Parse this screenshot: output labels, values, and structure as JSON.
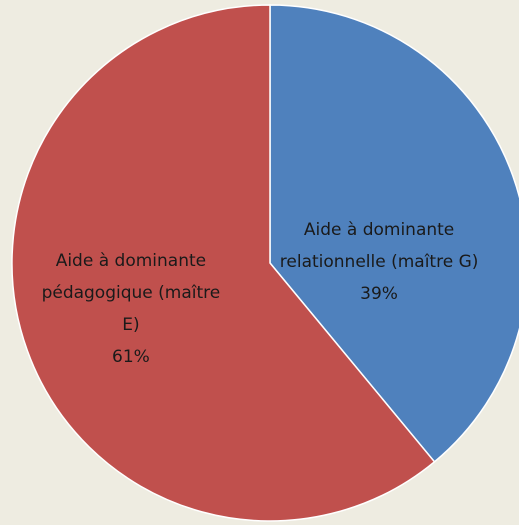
{
  "chart_data": {
    "type": "pie",
    "categories": [
      "Aide à dominante relationnelle (maître G)",
      "Aide à dominante pédagogique (maître E)"
    ],
    "values": [
      39,
      61
    ],
    "value_labels": [
      "39%",
      "61%"
    ],
    "colors": [
      "#4f81bd",
      "#c0504d"
    ]
  }
}
